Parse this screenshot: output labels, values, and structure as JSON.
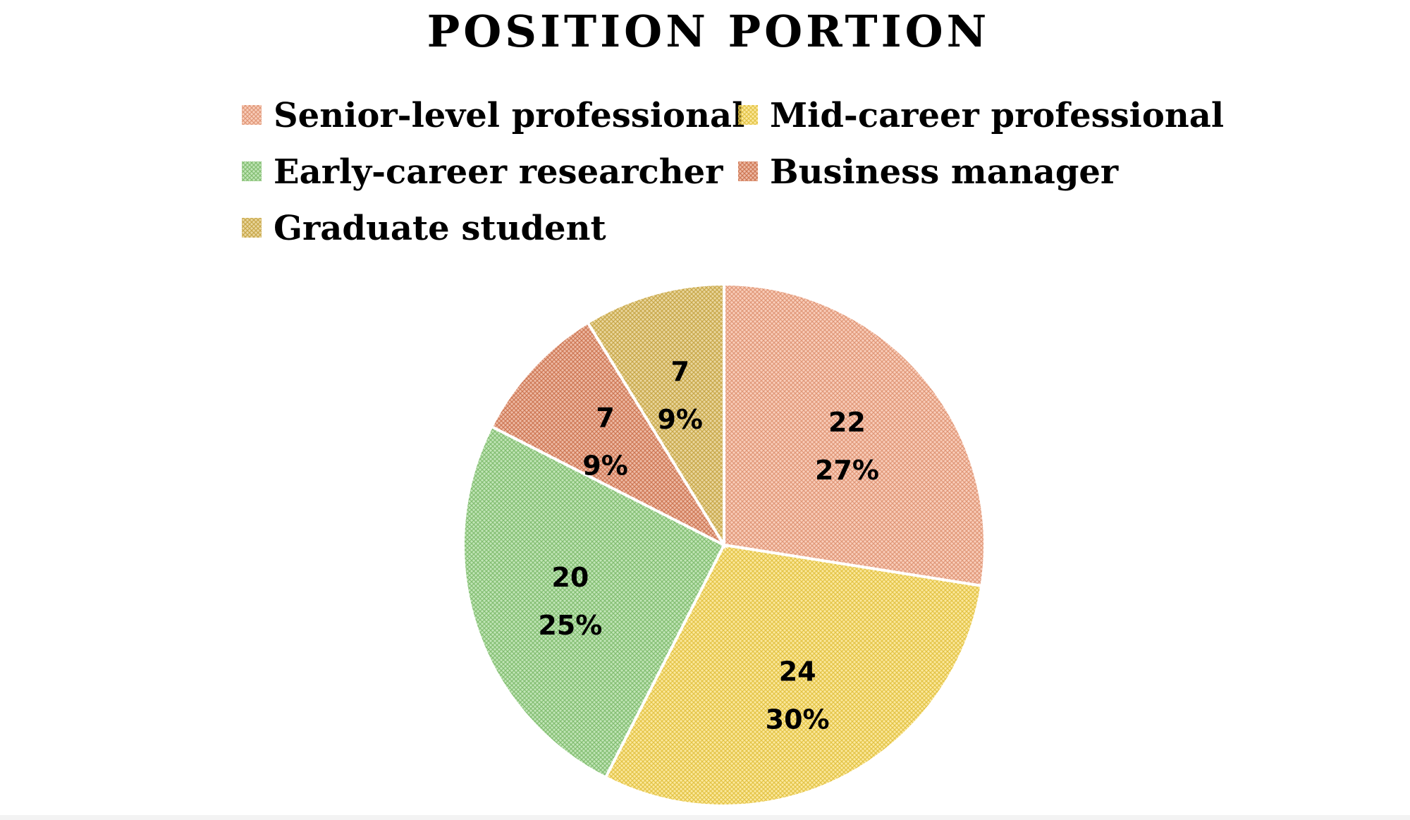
{
  "chart_data": {
    "type": "pie",
    "title": "POSITION PORTION",
    "legend_position": "top",
    "start_angle": "12 o'clock",
    "direction": "clockwise",
    "pattern": "cross-hatch",
    "slices": [
      {
        "label": "Senior-level professional",
        "value": 22,
        "percent": "27%",
        "color": "#f4a582"
      },
      {
        "label": "Mid-career professional",
        "value": 24,
        "percent": "30%",
        "color": "#f7d44c"
      },
      {
        "label": "Early-career researcher",
        "value": 20,
        "percent": "25%",
        "color": "#8ecf7c"
      },
      {
        "label": "Business manager",
        "value": 7,
        "percent": "9%",
        "color": "#e0825c"
      },
      {
        "label": "Graduate student",
        "value": 7,
        "percent": "9%",
        "color": "#d9b650"
      }
    ]
  }
}
